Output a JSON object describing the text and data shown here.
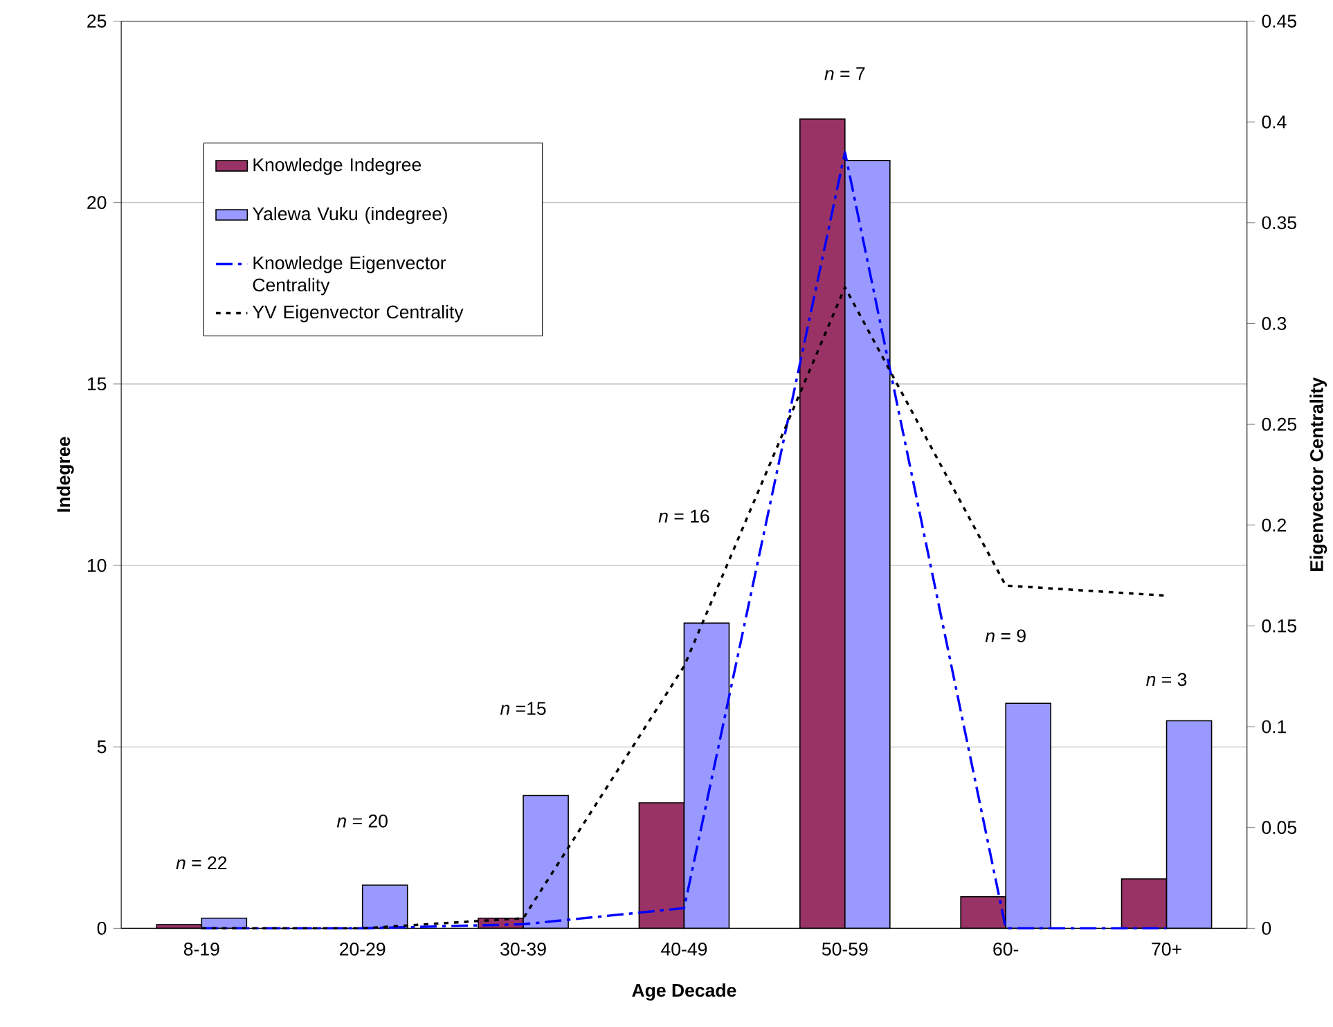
{
  "chart_data": {
    "type": "bar",
    "xlabel": "Age Decade",
    "ylabel": "Indegree",
    "y2label": "Eigenvector Centrality",
    "categories": [
      "8-19",
      "20-29",
      "30-39",
      "40-49",
      "50-59",
      "60-",
      "70+"
    ],
    "series": [
      {
        "name": "Knowledge Indegree",
        "color": "#993366",
        "values": [
          0.1,
          0,
          0.28,
          3.46,
          22.3,
          0.87,
          1.36
        ]
      },
      {
        "name": "Yalewa Vuku (indegree)",
        "color": "#9999ff",
        "values": [
          0.28,
          1.19,
          3.66,
          8.41,
          21.16,
          6.2,
          5.72
        ]
      },
      {
        "name": "Knowledge Eigenvector Centrality",
        "type": "line",
        "axis": "y2",
        "line_style": "dashed",
        "color": "#0000ff",
        "values": [
          0,
          0,
          0.002,
          0.01,
          0.385,
          0,
          0
        ]
      },
      {
        "name": "YV Eigenvector Centrality",
        "type": "line",
        "axis": "y2",
        "line_style": "dotted",
        "color": "#000000",
        "values": [
          0,
          0,
          0.005,
          0.13,
          0.318,
          0.17,
          0.165
        ]
      }
    ],
    "ylim": [
      0,
      25
    ],
    "yticks": [
      0,
      5,
      10,
      15,
      20,
      25
    ],
    "y2lim": [
      0,
      0.45
    ],
    "y2ticks": [
      0,
      0.05,
      0.1,
      0.15,
      0.2,
      0.25,
      0.3,
      0.35,
      0.4,
      0.45
    ],
    "grid": "y",
    "legend": "top left",
    "annotations": [
      "*n* = 22",
      "*n* = 20",
      "*n* =15",
      "*n* = 16",
      "*n* = 7",
      "*n* = 9",
      "*n* = 3"
    ]
  }
}
